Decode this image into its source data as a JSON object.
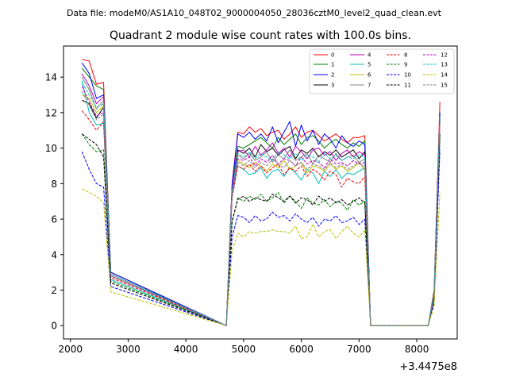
{
  "figure": {
    "suptitle": "Data file: modeM0/AS1A10_048T02_9000004050_28036cztM0_level2_quad_clean.evt",
    "title": "Quadrant 2 module wise count rates with 100.0s bins.",
    "x_offset_label": "+3.4475e8"
  },
  "chart_data": {
    "type": "line",
    "title": "Quadrant 2 module wise count rates with 100.0s bins.",
    "xlabel": "",
    "ylabel": "",
    "xlim": [
      1880,
      8700
    ],
    "ylim": [
      -0.75,
      15.75
    ],
    "x_ticks": [
      2000,
      3000,
      4000,
      5000,
      6000,
      7000,
      8000
    ],
    "x_tick_labels": [
      "2000",
      "3000",
      "4000",
      "5000",
      "6000",
      "7000",
      "8000"
    ],
    "y_ticks": [
      0,
      2,
      4,
      6,
      8,
      10,
      12,
      14
    ],
    "y_tick_labels": [
      "0",
      "2",
      "4",
      "6",
      "8",
      "10",
      "12",
      "14"
    ],
    "x_offset": 344750000,
    "grid": false,
    "legend_position": "top-right",
    "legend_columns": 4,
    "x_segments": [
      {
        "start": 2200,
        "end": 2700
      },
      {
        "start": 4700,
        "end": 7200
      },
      {
        "start": 8200,
        "end": 8400
      }
    ],
    "zero_ranges": [
      [
        2700,
        4700
      ],
      [
        7200,
        8200
      ]
    ],
    "series": [
      {
        "name": "0",
        "color": "#ff0000",
        "dash": "solid",
        "segments": [
          [
            15.0,
            14.9,
            13.6,
            13.7,
            3.0
          ],
          [
            0.0,
            8.0,
            10.9,
            10.8,
            11.2,
            10.9,
            11.1,
            10.7,
            10.9,
            11.0,
            10.5,
            10.8,
            11.2,
            10.6,
            10.9,
            11.0,
            10.7,
            10.4,
            10.6,
            10.8,
            10.5,
            10.3,
            10.6,
            10.6,
            10.7,
            0.0
          ],
          [
            0.0,
            2.0,
            12.6
          ]
        ]
      },
      {
        "name": "1",
        "color": "#008000",
        "dash": "solid",
        "segments": [
          [
            14.5,
            14.0,
            13.5,
            13.3,
            3.0
          ],
          [
            0.0,
            7.8,
            10.1,
            10.0,
            10.2,
            10.4,
            10.6,
            10.3,
            10.0,
            10.6,
            10.2,
            10.5,
            10.8,
            10.2,
            10.6,
            10.7,
            10.4,
            10.0,
            10.3,
            10.5,
            10.2,
            10.0,
            10.3,
            10.1,
            10.4,
            0.0
          ],
          [
            0.0,
            1.9,
            12.0
          ]
        ]
      },
      {
        "name": "2",
        "color": "#0000ff",
        "dash": "solid",
        "segments": [
          [
            14.8,
            14.2,
            12.8,
            13.0,
            3.0
          ],
          [
            0.0,
            7.9,
            10.8,
            10.6,
            10.9,
            10.5,
            10.8,
            10.4,
            11.2,
            10.3,
            10.9,
            11.5,
            10.1,
            11.3,
            10.4,
            11.0,
            10.2,
            10.8,
            10.5,
            10.0,
            10.7,
            10.3,
            10.1,
            10.4,
            10.2,
            0.0
          ],
          [
            0.0,
            1.9,
            12.0
          ]
        ]
      },
      {
        "name": "3",
        "color": "#000000",
        "dash": "solid",
        "segments": [
          [
            12.7,
            12.5,
            11.7,
            12.3,
            2.8
          ],
          [
            0.0,
            7.5,
            9.9,
            9.7,
            10.0,
            9.5,
            10.2,
            9.8,
            10.0,
            9.6,
            9.9,
            10.1,
            9.4,
            9.9,
            9.7,
            10.0,
            9.5,
            9.8,
            9.6,
            9.9,
            9.5,
            9.7,
            9.9,
            9.4,
            9.8,
            0.0
          ],
          [
            0.0,
            1.8,
            11.8
          ]
        ]
      },
      {
        "name": "4",
        "color": "#bf00bf",
        "dash": "solid",
        "segments": [
          [
            14.2,
            13.5,
            12.5,
            12.9,
            2.9
          ],
          [
            0.0,
            7.7,
            9.8,
            9.9,
            9.5,
            10.1,
            9.6,
            9.9,
            10.3,
            9.7,
            10.0,
            9.5,
            10.1,
            9.8,
            9.4,
            9.9,
            10.0,
            9.6,
            9.8,
            9.3,
            9.7,
            9.9,
            9.5,
            9.8,
            9.6,
            0.0
          ],
          [
            0.0,
            1.8,
            11.7
          ]
        ]
      },
      {
        "name": "5",
        "color": "#00bfbf",
        "dash": "solid",
        "segments": [
          [
            13.8,
            12.0,
            11.3,
            11.4,
            2.6
          ],
          [
            0.0,
            7.3,
            9.0,
            8.8,
            8.5,
            8.6,
            8.9,
            8.3,
            8.7,
            8.8,
            8.4,
            8.9,
            8.6,
            8.2,
            8.8,
            8.6,
            8.0,
            8.7,
            8.4,
            8.8,
            8.3,
            8.6,
            8.5,
            8.7,
            8.9,
            0.0
          ],
          [
            0.0,
            1.7,
            11.5
          ]
        ]
      },
      {
        "name": "6",
        "color": "#bfbf00",
        "dash": "solid",
        "segments": [
          [
            13.0,
            12.8,
            12.0,
            12.4,
            2.8
          ],
          [
            0.0,
            7.5,
            9.3,
            9.1,
            8.9,
            9.2,
            9.0,
            8.7,
            9.1,
            8.9,
            9.3,
            8.8,
            9.0,
            9.2,
            8.6,
            9.0,
            8.9,
            8.7,
            9.1,
            8.8,
            9.0,
            8.7,
            8.9,
            9.2,
            8.8,
            0.0
          ],
          [
            0.0,
            1.8,
            11.6
          ]
        ]
      },
      {
        "name": "7",
        "color": "#808080",
        "dash": "solid",
        "segments": [
          [
            14.0,
            13.3,
            12.2,
            12.7,
            2.9
          ],
          [
            0.0,
            7.6,
            9.6,
            9.4,
            9.7,
            9.3,
            9.5,
            9.8,
            9.2,
            9.6,
            9.4,
            9.9,
            9.3,
            9.5,
            9.7,
            9.1,
            9.6,
            9.4,
            9.2,
            9.7,
            9.3,
            9.5,
            9.6,
            9.2,
            9.4,
            0.0
          ],
          [
            0.0,
            1.8,
            11.7
          ]
        ]
      },
      {
        "name": "8",
        "color": "#ff0000",
        "dash": "dashed",
        "segments": [
          [
            12.1,
            11.6,
            11.0,
            11.5,
            2.7
          ],
          [
            0.0,
            7.2,
            9.0,
            8.8,
            9.1,
            8.7,
            9.0,
            8.6,
            8.9,
            9.1,
            8.5,
            8.9,
            8.7,
            9.0,
            8.4,
            8.8,
            8.6,
            8.2,
            8.7,
            8.5,
            7.8,
            8.3,
            8.1,
            8.0,
            8.4,
            0.0
          ],
          [
            0.0,
            1.7,
            11.4
          ]
        ]
      },
      {
        "name": "9",
        "color": "#008000",
        "dash": "dashed",
        "segments": [
          [
            10.8,
            10.2,
            9.8,
            9.9,
            2.5
          ],
          [
            0.0,
            5.8,
            7.2,
            7.0,
            7.3,
            7.1,
            7.4,
            7.0,
            7.2,
            7.5,
            6.9,
            7.3,
            7.0,
            6.6,
            7.2,
            6.9,
            6.8,
            7.1,
            6.7,
            7.0,
            6.9,
            6.5,
            7.1,
            6.8,
            7.0,
            0.0
          ],
          [
            0.0,
            1.5,
            10.6
          ]
        ]
      },
      {
        "name": "10",
        "color": "#0000ff",
        "dash": "dashed",
        "segments": [
          [
            9.8,
            8.8,
            8.0,
            7.8,
            2.2
          ],
          [
            0.0,
            5.0,
            6.2,
            6.1,
            5.8,
            6.2,
            5.9,
            6.0,
            6.4,
            6.1,
            6.2,
            5.9,
            6.3,
            6.0,
            5.8,
            6.1,
            5.6,
            6.0,
            5.9,
            6.2,
            5.8,
            5.9,
            6.1,
            5.7,
            6.0,
            0.0
          ],
          [
            0.0,
            1.3,
            9.9
          ]
        ]
      },
      {
        "name": "11",
        "color": "#000000",
        "dash": "dashed",
        "segments": [
          [
            10.8,
            10.5,
            10.2,
            9.5,
            2.4
          ],
          [
            0.0,
            5.9,
            7.1,
            7.3,
            7.0,
            7.2,
            7.1,
            7.0,
            7.4,
            7.2,
            7.0,
            7.3,
            6.9,
            7.2,
            7.1,
            6.8,
            7.3,
            7.0,
            7.2,
            6.9,
            7.1,
            6.8,
            7.0,
            7.2,
            6.9,
            0.0
          ],
          [
            0.0,
            1.5,
            10.8
          ]
        ]
      },
      {
        "name": "12",
        "color": "#bf00bf",
        "dash": "dashed",
        "segments": [
          [
            13.5,
            12.6,
            11.8,
            12.0,
            2.8
          ],
          [
            0.0,
            7.4,
            9.4,
            9.3,
            9.5,
            9.0,
            9.4,
            9.2,
            9.6,
            9.1,
            9.4,
            9.3,
            9.0,
            9.5,
            9.1,
            9.3,
            9.2,
            8.9,
            9.4,
            9.1,
            9.2,
            9.0,
            9.3,
            9.1,
            9.2,
            0.0
          ],
          [
            0.0,
            1.7,
            11.6
          ]
        ]
      },
      {
        "name": "13",
        "color": "#00bfbf",
        "dash": "dashed",
        "segments": [
          [
            13.7,
            13.0,
            12.3,
            12.5,
            2.9
          ],
          [
            0.0,
            7.6,
            9.7,
            9.5,
            9.8,
            9.4,
            9.7,
            9.5,
            9.3,
            9.8,
            9.6,
            9.4,
            9.7,
            9.3,
            9.6,
            9.5,
            9.2,
            9.7,
            9.4,
            9.6,
            9.3,
            9.5,
            9.4,
            9.6,
            9.5,
            0.0
          ],
          [
            0.0,
            1.8,
            11.8
          ]
        ]
      },
      {
        "name": "14",
        "color": "#bfbf00",
        "dash": "dashed",
        "segments": [
          [
            7.7,
            7.5,
            7.3,
            6.9,
            1.9
          ],
          [
            0.0,
            4.2,
            5.2,
            5.0,
            5.3,
            5.2,
            5.3,
            5.3,
            5.4,
            5.3,
            5.3,
            5.2,
            5.6,
            4.9,
            5.0,
            5.7,
            5.0,
            5.3,
            5.4,
            4.9,
            5.3,
            5.6,
            5.2,
            5.0,
            5.4,
            0.0
          ],
          [
            0.0,
            1.1,
            7.5
          ]
        ]
      },
      {
        "name": "15",
        "color": "#808080",
        "dash": "dashed",
        "segments": [
          [
            13.2,
            12.4,
            11.6,
            11.9,
            2.8
          ],
          [
            0.0,
            7.4,
            9.2,
            9.0,
            9.3,
            8.9,
            9.2,
            9.0,
            9.4,
            9.1,
            8.9,
            9.3,
            9.0,
            9.2,
            8.8,
            9.1,
            9.0,
            8.8,
            9.2,
            8.9,
            9.1,
            8.8,
            9.0,
            9.2,
            8.9,
            0.0
          ],
          [
            0.0,
            1.7,
            11.5
          ]
        ]
      }
    ]
  }
}
